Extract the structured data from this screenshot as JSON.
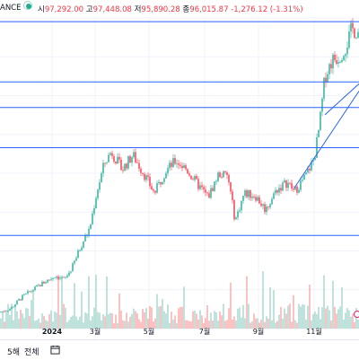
{
  "header": {
    "title": "ANCE",
    "open_label": "시",
    "open": "97,292.00",
    "high_label": "고",
    "high": "97,448.08",
    "low_label": "저",
    "low": "95,890.28",
    "close_label": "종",
    "close": "96,015.87",
    "change": "-1,276.12 (-1.31%)"
  },
  "footer": {
    "timeframes": [
      "5해",
      "전체"
    ],
    "calendar_icon": "calendar-icon"
  },
  "colors": {
    "up": "#22ab94",
    "down": "#f23645",
    "trendline": "#2962ff",
    "volume_up": "#a5d6cd",
    "volume_down": "#f7a9a7"
  },
  "chart_data": {
    "type": "candlestick",
    "x_tick_labels": [
      "2024",
      "3월",
      "5월",
      "7월",
      "9월",
      "11월"
    ],
    "y_range": [
      15000,
      100000
    ],
    "price_path": [
      {
        "t": 0.0,
        "v": 19500
      },
      {
        "t": 0.03,
        "v": 20500
      },
      {
        "t": 0.06,
        "v": 23500
      },
      {
        "t": 0.09,
        "v": 25500
      },
      {
        "t": 0.12,
        "v": 27500
      },
      {
        "t": 0.155,
        "v": 29500
      },
      {
        "t": 0.18,
        "v": 28500
      },
      {
        "t": 0.2,
        "v": 31500
      },
      {
        "t": 0.225,
        "v": 37500
      },
      {
        "t": 0.25,
        "v": 42500
      },
      {
        "t": 0.27,
        "v": 52500
      },
      {
        "t": 0.29,
        "v": 60000
      },
      {
        "t": 0.31,
        "v": 63500
      },
      {
        "t": 0.34,
        "v": 58500
      },
      {
        "t": 0.37,
        "v": 62500
      },
      {
        "t": 0.4,
        "v": 57500
      },
      {
        "t": 0.43,
        "v": 52000
      },
      {
        "t": 0.46,
        "v": 58000
      },
      {
        "t": 0.49,
        "v": 61000
      },
      {
        "t": 0.52,
        "v": 58500
      },
      {
        "t": 0.55,
        "v": 54500
      },
      {
        "t": 0.58,
        "v": 51000
      },
      {
        "t": 0.61,
        "v": 57500
      },
      {
        "t": 0.635,
        "v": 56500
      },
      {
        "t": 0.655,
        "v": 44500
      },
      {
        "t": 0.68,
        "v": 52000
      },
      {
        "t": 0.71,
        "v": 51500
      },
      {
        "t": 0.74,
        "v": 47500
      },
      {
        "t": 0.77,
        "v": 53000
      },
      {
        "t": 0.8,
        "v": 55000
      },
      {
        "t": 0.82,
        "v": 52500
      },
      {
        "t": 0.85,
        "v": 56500
      },
      {
        "t": 0.875,
        "v": 61500
      },
      {
        "t": 0.89,
        "v": 70500
      },
      {
        "t": 0.905,
        "v": 84000
      },
      {
        "t": 0.925,
        "v": 88500
      },
      {
        "t": 0.945,
        "v": 89500
      },
      {
        "t": 0.965,
        "v": 92500
      },
      {
        "t": 0.98,
        "v": 97000
      },
      {
        "t": 1.0,
        "v": 96015.87
      }
    ],
    "horizontal_levels": [
      99000,
      82500,
      75500,
      64500,
      40500
    ],
    "trendlines": [
      {
        "from": {
          "t": 0.82,
          "v": 53500
        },
        "to": {
          "t": 1.0,
          "v": 80000
        }
      },
      {
        "from": {
          "t": 0.905,
          "v": 73500
        },
        "to": {
          "t": 1.0,
          "v": 82000
        }
      }
    ],
    "volume_profile": "low with isolated spikes; largest near 8월 and 11월",
    "grid": true,
    "legend": "none"
  }
}
